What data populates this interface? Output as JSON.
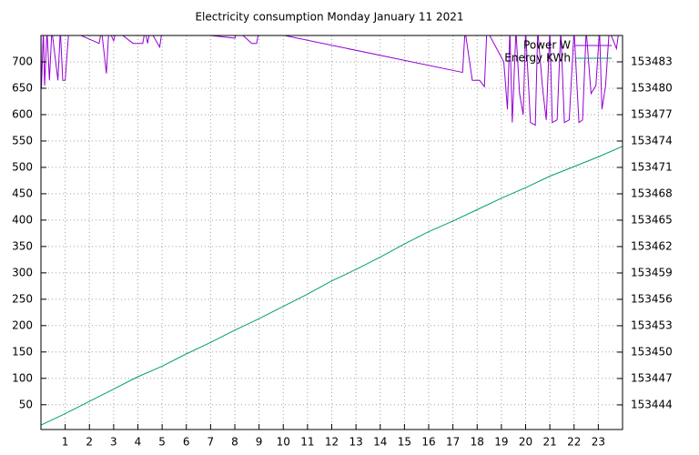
{
  "chart_data": {
    "type": "line",
    "title": "Electricity consumption Monday January 11 2021",
    "xlim": [
      0,
      24
    ],
    "xticks": [
      1,
      2,
      3,
      4,
      5,
      6,
      7,
      8,
      9,
      10,
      11,
      12,
      13,
      14,
      15,
      16,
      17,
      18,
      19,
      20,
      21,
      22,
      23
    ],
    "ylim": [
      3,
      750
    ],
    "yticks": [
      50,
      100,
      150,
      200,
      250,
      300,
      350,
      400,
      450,
      500,
      550,
      600,
      650,
      700
    ],
    "y2lim": [
      153441.2,
      153486
    ],
    "y2ticks": [
      153444,
      153447,
      153450,
      153453,
      153456,
      153459,
      153462,
      153465,
      153468,
      153471,
      153474,
      153477,
      153480,
      153483
    ],
    "grid": true,
    "legend": "top-right",
    "series": [
      {
        "name": "Power W",
        "color": "#9400d3",
        "axis": "y",
        "x": [
          0,
          0.02,
          0.1,
          0.15,
          0.25,
          0.35,
          0.45,
          0.7,
          0.8,
          0.9,
          1.0,
          1.15,
          2.4,
          2.5,
          2.7,
          2.8,
          3.0,
          3.1,
          3.8,
          4.2,
          4.3,
          4.4,
          4.5,
          4.9,
          5.0,
          8.0,
          8.1,
          8.7,
          8.9,
          9.0,
          17.4,
          17.5,
          17.8,
          18.1,
          18.3,
          18.4,
          19.1,
          19.25,
          19.35,
          19.45,
          19.6,
          19.75,
          19.9,
          20.0,
          20.2,
          20.4,
          20.5,
          20.7,
          20.85,
          21.0,
          21.1,
          21.3,
          21.45,
          21.6,
          21.8,
          22.0,
          22.2,
          22.35,
          22.5,
          22.7,
          22.9,
          23.05,
          23.15,
          23.3,
          23.45,
          23.75,
          23.85,
          24
        ],
        "values": [
          760,
          650,
          760,
          655,
          760,
          665,
          760,
          665,
          760,
          665,
          665,
          760,
          735,
          760,
          678,
          760,
          740,
          760,
          735,
          735,
          760,
          735,
          760,
          728,
          760,
          745,
          760,
          735,
          735,
          760,
          680,
          760,
          665,
          665,
          653,
          760,
          700,
          610,
          760,
          585,
          760,
          640,
          600,
          760,
          585,
          580,
          760,
          650,
          590,
          760,
          585,
          590,
          760,
          585,
          590,
          760,
          585,
          590,
          760,
          640,
          655,
          760,
          610,
          655,
          760,
          725,
          760,
          760
        ]
      },
      {
        "name": "Energy KWh",
        "color": "#009e73",
        "axis": "y2",
        "x": [
          0,
          1,
          2,
          3,
          4,
          5,
          6,
          7,
          8,
          9,
          10,
          11,
          12,
          13,
          14,
          15,
          16,
          17,
          18,
          19,
          20,
          21,
          22,
          23,
          24
        ],
        "values": [
          153441.7,
          153443.0,
          153444.4,
          153445.8,
          153447.2,
          153448.4,
          153449.8,
          153451.1,
          153452.5,
          153453.8,
          153455.2,
          153456.6,
          153458.1,
          153459.4,
          153460.8,
          153462.3,
          153463.7,
          153464.9,
          153466.2,
          153467.5,
          153468.7,
          153470.0,
          153471.1,
          153472.2,
          153473.4
        ]
      }
    ]
  }
}
